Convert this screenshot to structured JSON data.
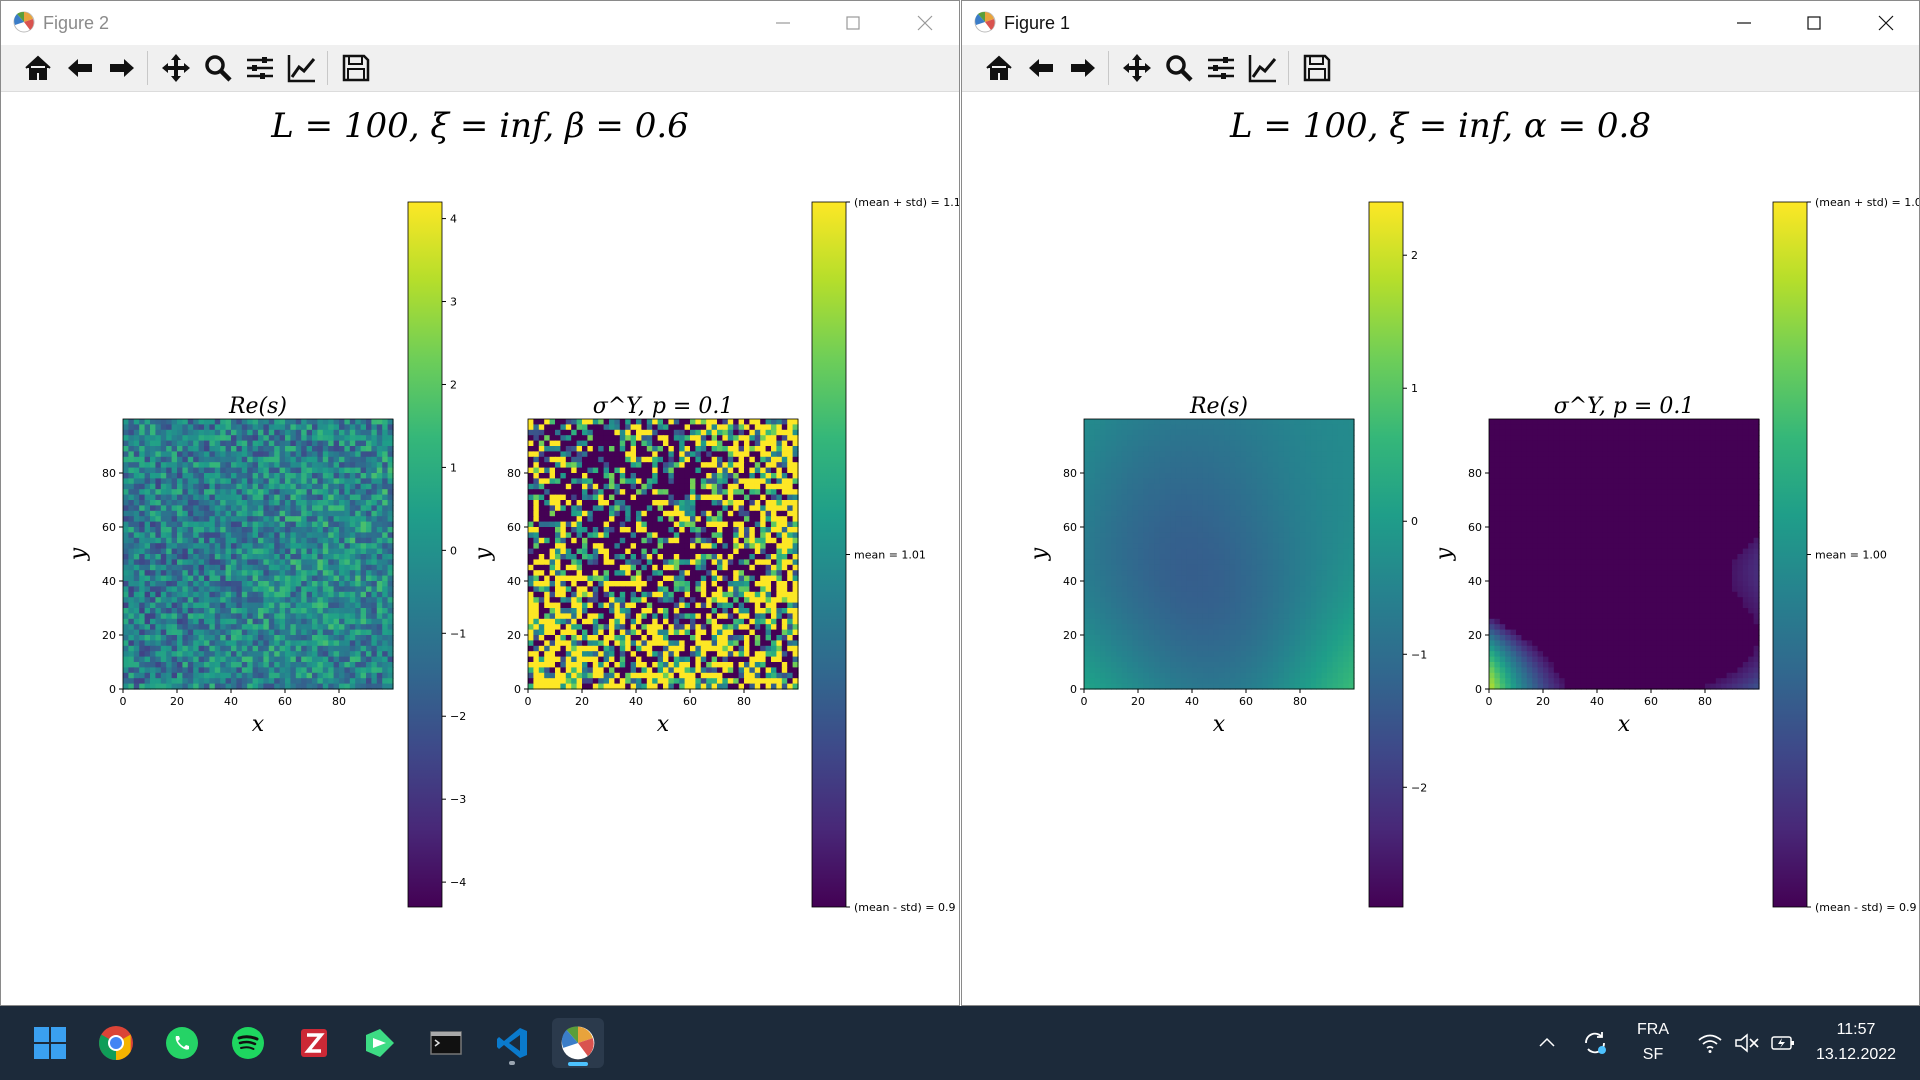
{
  "windows": [
    {
      "id": "fig2",
      "title": "Figure 2",
      "active": false,
      "suptitle": "L = 100, ξ = inf, β = 0.6",
      "panels": [
        {
          "title": "Re(s)",
          "xlabel": "x",
          "ylabel": "y",
          "ticks": [
            "0",
            "20",
            "40",
            "60",
            "80"
          ],
          "field": "Re(s)",
          "texture": "fine-noise"
        },
        {
          "title": "σ^Y, p = 0.1",
          "xlabel": "x",
          "ylabel": "y",
          "ticks": [
            "0",
            "20",
            "40",
            "60",
            "80"
          ],
          "field": "sigma_Y",
          "texture": "fine-binary"
        }
      ],
      "colorbar1": {
        "ticks": [
          "4",
          "3",
          "2",
          "1",
          "0",
          "−1",
          "−2",
          "−3",
          "−4"
        ],
        "range": [
          -4.3,
          4.2
        ]
      },
      "colorbar2": {
        "top": "(mean + std) = 1.1",
        "mid": "mean = 1.01",
        "bottom": "(mean - std) = 0.9"
      }
    },
    {
      "id": "fig1",
      "title": "Figure 1",
      "active": true,
      "suptitle": "L = 100, ξ = inf, α = 0.8",
      "panels": [
        {
          "title": "Re(s)",
          "xlabel": "x",
          "ylabel": "y",
          "ticks": [
            "0",
            "20",
            "40",
            "60",
            "80"
          ],
          "field": "Re(s)",
          "texture": "smooth"
        },
        {
          "title": "σ^Y, p = 0.1",
          "xlabel": "x",
          "ylabel": "y",
          "ticks": [
            "0",
            "20",
            "40",
            "60",
            "80"
          ],
          "field": "sigma_Y",
          "texture": "smooth-binary"
        }
      ],
      "colorbar1": {
        "ticks": [
          "2",
          "1",
          "0",
          "−1",
          "−2"
        ],
        "range": [
          -2.9,
          2.4
        ]
      },
      "colorbar2": {
        "top": "(mean + std) = 1.0",
        "mid": "mean = 1.00",
        "bottom": "(mean - std) = 0.9"
      }
    }
  ],
  "toolbar": {
    "buttons": [
      "home-icon",
      "back-arrow-icon",
      "forward-arrow-icon",
      "pan-icon",
      "zoom-icon",
      "configure-subplots-icon",
      "edit-axis-icon",
      "save-icon"
    ]
  },
  "taskbar": {
    "apps": [
      "start-icon",
      "chrome-icon",
      "whatsapp-icon",
      "spotify-icon",
      "zotero-icon",
      "app-icon",
      "terminal-icon",
      "vscode-icon",
      "python-figure-icon"
    ],
    "language": "FRA",
    "layout": "SF",
    "time": "11:57",
    "date": "13.12.2022"
  },
  "colors": {
    "viridis": [
      "#440154",
      "#482878",
      "#3e4989",
      "#31688e",
      "#26828e",
      "#1f9e89",
      "#35b779",
      "#6ece58",
      "#b5de2b",
      "#fde725"
    ],
    "taskbar": "#1c2a3a",
    "accent": "#4cc2ff"
  }
}
